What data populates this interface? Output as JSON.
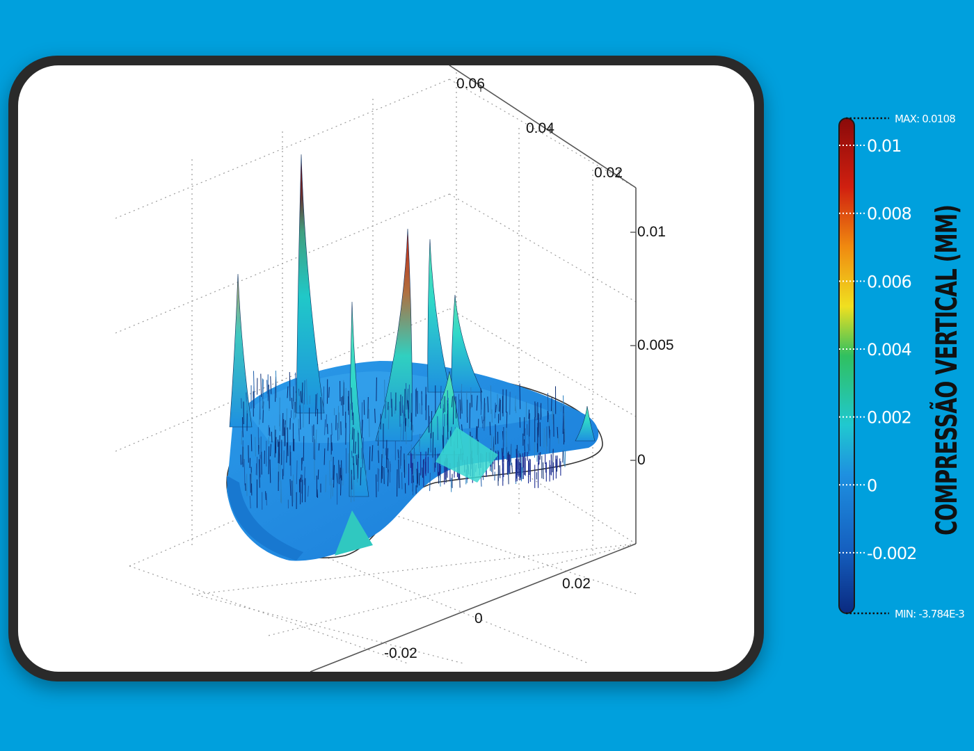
{
  "chart_data": {
    "type": "surface-3d",
    "title": "",
    "axes": {
      "y_ticks": [
        "0.06",
        "0.04",
        "0.02"
      ],
      "z_ticks": [
        "0.01",
        "0.005",
        "0"
      ],
      "x_ticks": [
        "0.02",
        "0",
        "-0.02"
      ]
    },
    "grid": true,
    "colorbar": {
      "title": "COMPRESSÃO VERTICAL (MM)",
      "max_label": "MAX: 0.0108",
      "min_label": "MIN: -3.784E-3",
      "max_value": 0.0108,
      "min_value": -0.003784,
      "ticks": [
        {
          "value": 0.01,
          "label": "0.01"
        },
        {
          "value": 0.008,
          "label": "0.008"
        },
        {
          "value": 0.006,
          "label": "0.006"
        },
        {
          "value": 0.004,
          "label": "0.004"
        },
        {
          "value": 0.002,
          "label": "0.002"
        },
        {
          "value": 0,
          "label": "0"
        },
        {
          "value": -0.002,
          "label": "-0.002"
        }
      ],
      "colors": [
        "#0a2a80",
        "#1560c0",
        "#1e90e0",
        "#20c8d0",
        "#30c060",
        "#f0e020",
        "#f08a10",
        "#d02010",
        "#8a0a0a"
      ]
    }
  }
}
